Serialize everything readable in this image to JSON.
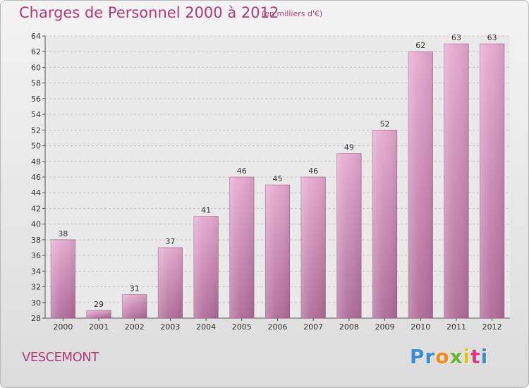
{
  "header": {
    "title": "Charges de Personnel 2000 à 2012",
    "subtitle": "(en milliers d'€)"
  },
  "footer": {
    "commune": "VESCEMONT",
    "brand": "Proxiti",
    "brand_letters": [
      {
        "char": "P",
        "color": "#3a8fd4"
      },
      {
        "char": "r",
        "color": "#3a8fd4"
      },
      {
        "char": "o",
        "color": "#f28a1e"
      },
      {
        "char": "x",
        "color": "#6ab82e"
      },
      {
        "char": "i",
        "color": "#e8c21c"
      },
      {
        "char": "t",
        "color": "#e5357f"
      },
      {
        "char": "i",
        "color": "#3a8fd4"
      }
    ]
  },
  "colors": {
    "title": "#b03a7a",
    "bar_light": "#e6a9d0",
    "bar_dark": "#b06c98",
    "bar_edge": "#9e5a86"
  },
  "chart_data": {
    "type": "bar",
    "title": "Charges de Personnel 2000 à 2012",
    "subtitle": "(en milliers d'€)",
    "categories": [
      "2000",
      "2001",
      "2002",
      "2003",
      "2004",
      "2005",
      "2006",
      "2007",
      "2008",
      "2009",
      "2010",
      "2011",
      "2012"
    ],
    "values": [
      38,
      29,
      31,
      37,
      41,
      46,
      45,
      46,
      49,
      52,
      62,
      63,
      63
    ],
    "ylim": [
      28,
      64
    ],
    "yticks": [
      28,
      30,
      32,
      34,
      36,
      38,
      40,
      42,
      44,
      46,
      48,
      50,
      52,
      54,
      56,
      58,
      60,
      62,
      64
    ],
    "grid": true,
    "data_labels": true
  }
}
